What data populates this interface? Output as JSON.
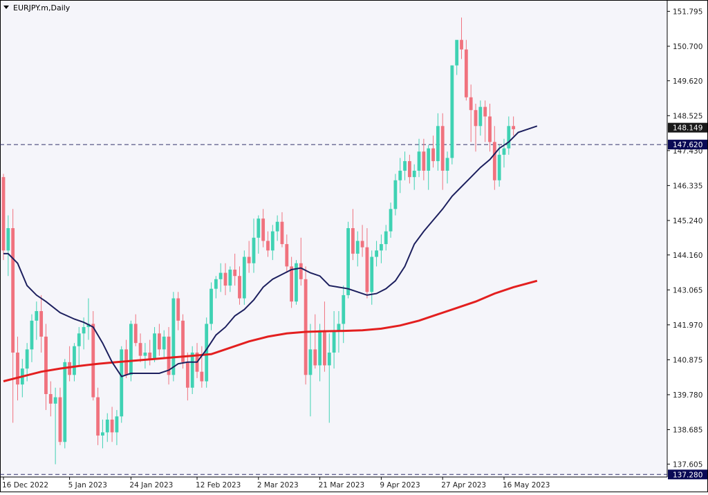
{
  "window": {
    "symbol_title": "EURJPY.m,Daily",
    "menu_arrow_icon": "triangle-down-icon"
  },
  "colors": {
    "background": "#f5f5fa",
    "bull": "#3fd2b3",
    "bear": "#f0727e",
    "ma_fast": "#1c1f5e",
    "ma_slow": "#e31f1f",
    "level_line": "#30306a",
    "price_tag_bg": "#1a1a1a",
    "level_tag_bg": "#0a0a55",
    "axis_text": "#222222"
  },
  "chart_data": {
    "type": "candlestick",
    "y_range": [
      137.2,
      152.15
    ],
    "y_ticks": [
      "151.795",
      "150.700",
      "149.620",
      "148.525",
      "147.430",
      "146.335",
      "145.240",
      "144.160",
      "143.065",
      "141.970",
      "140.875",
      "139.780",
      "138.685",
      "137.605"
    ],
    "x_ticks": [
      {
        "index": 0,
        "label": "16 Dec 2022"
      },
      {
        "index": 14,
        "label": "5 Jan 2023"
      },
      {
        "index": 27,
        "label": "24 Jan 2023"
      },
      {
        "index": 41,
        "label": "12 Feb 2023"
      },
      {
        "index": 54,
        "label": "2 Mar 2023"
      },
      {
        "index": 67,
        "label": "21 Mar 2023"
      },
      {
        "index": 80,
        "label": "9 Apr 2023"
      },
      {
        "index": 93,
        "label": "27 Apr 2023"
      },
      {
        "index": 106,
        "label": "16 May 2023"
      }
    ],
    "horizontal_levels": [
      {
        "value": 147.62,
        "label": "147.620"
      },
      {
        "value": 137.28,
        "label": "137.280"
      }
    ],
    "current_price": {
      "value": 148.149,
      "label": "148.149"
    },
    "candles": [
      [
        146.6,
        146.7,
        144.0,
        144.3
      ],
      [
        144.3,
        145.4,
        143.5,
        145.0
      ],
      [
        145.0,
        145.6,
        138.9,
        141.1
      ],
      [
        141.1,
        141.6,
        139.6,
        140.1
      ],
      [
        140.1,
        140.9,
        139.7,
        140.6
      ],
      [
        140.6,
        141.4,
        140.2,
        141.2
      ],
      [
        141.2,
        142.3,
        140.8,
        142.1
      ],
      [
        142.1,
        142.7,
        141.5,
        142.4
      ],
      [
        142.4,
        142.9,
        141.1,
        141.6
      ],
      [
        141.6,
        142.0,
        139.3,
        139.8
      ],
      [
        139.8,
        140.2,
        139.1,
        139.5
      ],
      [
        139.5,
        140.0,
        137.6,
        139.7
      ],
      [
        139.7,
        140.0,
        138.2,
        138.3
      ],
      [
        138.3,
        140.9,
        138.1,
        140.8
      ],
      [
        140.8,
        141.3,
        140.2,
        140.4
      ],
      [
        140.4,
        141.4,
        140.2,
        141.3
      ],
      [
        141.3,
        141.9,
        140.7,
        141.7
      ],
      [
        141.7,
        142.2,
        141.2,
        141.9
      ],
      [
        141.9,
        142.8,
        141.5,
        142.0
      ],
      [
        142.0,
        142.4,
        139.6,
        139.7
      ],
      [
        139.7,
        140.0,
        138.2,
        138.5
      ],
      [
        138.5,
        139.0,
        138.1,
        138.6
      ],
      [
        138.6,
        139.2,
        138.3,
        139.0
      ],
      [
        139.0,
        139.4,
        138.3,
        138.6
      ],
      [
        138.6,
        139.3,
        138.2,
        139.1
      ],
      [
        139.1,
        141.3,
        138.9,
        141.2
      ],
      [
        141.2,
        141.5,
        140.3,
        140.4
      ],
      [
        140.4,
        142.1,
        140.2,
        142.0
      ],
      [
        142.0,
        142.3,
        141.3,
        141.4
      ],
      [
        141.4,
        141.7,
        140.8,
        141.0
      ],
      [
        141.0,
        141.4,
        140.6,
        141.1
      ],
      [
        141.1,
        141.5,
        140.7,
        140.9
      ],
      [
        140.9,
        141.9,
        140.8,
        141.7
      ],
      [
        141.7,
        142.0,
        141.0,
        141.2
      ],
      [
        141.2,
        141.8,
        140.9,
        141.6
      ],
      [
        141.6,
        141.9,
        140.1,
        140.4
      ],
      [
        140.4,
        143.0,
        140.2,
        142.8
      ],
      [
        142.8,
        143.0,
        141.8,
        142.1
      ],
      [
        142.1,
        142.3,
        140.6,
        140.8
      ],
      [
        140.8,
        141.1,
        139.6,
        140.0
      ],
      [
        140.0,
        141.3,
        139.8,
        141.1
      ],
      [
        141.1,
        141.4,
        140.3,
        140.5
      ],
      [
        140.5,
        141.3,
        140.0,
        140.2
      ],
      [
        140.2,
        142.2,
        140.0,
        142.0
      ],
      [
        142.0,
        143.3,
        141.8,
        143.1
      ],
      [
        143.1,
        143.5,
        142.8,
        143.4
      ],
      [
        143.4,
        143.9,
        143.0,
        143.6
      ],
      [
        143.6,
        143.9,
        142.9,
        143.2
      ],
      [
        143.2,
        143.8,
        143.0,
        143.7
      ],
      [
        143.7,
        144.2,
        143.2,
        143.5
      ],
      [
        143.5,
        143.8,
        142.6,
        142.8
      ],
      [
        142.8,
        144.3,
        142.6,
        144.1
      ],
      [
        144.1,
        144.6,
        143.6,
        143.9
      ],
      [
        143.9,
        145.3,
        143.6,
        144.7
      ],
      [
        144.7,
        145.4,
        144.2,
        145.3
      ],
      [
        145.3,
        145.6,
        144.4,
        144.6
      ],
      [
        144.6,
        144.9,
        144.1,
        144.3
      ],
      [
        144.3,
        145.1,
        144.0,
        144.9
      ],
      [
        144.9,
        145.4,
        144.6,
        145.2
      ],
      [
        145.2,
        145.5,
        144.4,
        144.5
      ],
      [
        144.5,
        144.8,
        143.6,
        143.8
      ],
      [
        143.8,
        144.1,
        142.5,
        142.7
      ],
      [
        142.7,
        144.0,
        142.6,
        143.9
      ],
      [
        143.9,
        144.7,
        143.2,
        143.4
      ],
      [
        143.4,
        143.8,
        140.1,
        140.4
      ],
      [
        140.4,
        142.0,
        139.1,
        141.2
      ],
      [
        141.2,
        142.3,
        140.6,
        140.7
      ],
      [
        140.7,
        142.0,
        140.2,
        141.8
      ],
      [
        141.8,
        142.7,
        140.5,
        140.7
      ],
      [
        140.7,
        141.7,
        138.9,
        141.1
      ],
      [
        141.1,
        142.4,
        140.6,
        141.8
      ],
      [
        141.8,
        142.4,
        141.1,
        142.0
      ],
      [
        142.0,
        143.2,
        141.4,
        142.9
      ],
      [
        142.9,
        145.2,
        142.8,
        145.0
      ],
      [
        145.0,
        145.6,
        144.0,
        144.2
      ],
      [
        144.2,
        144.9,
        143.8,
        144.6
      ],
      [
        144.6,
        145.1,
        144.1,
        144.4
      ],
      [
        144.4,
        145.0,
        142.8,
        143.0
      ],
      [
        143.0,
        144.3,
        142.6,
        144.1
      ],
      [
        144.1,
        144.6,
        143.8,
        144.3
      ],
      [
        144.3,
        144.8,
        143.9,
        144.5
      ],
      [
        144.5,
        145.1,
        144.3,
        144.9
      ],
      [
        144.9,
        145.8,
        144.7,
        145.6
      ],
      [
        145.6,
        146.7,
        145.4,
        146.5
      ],
      [
        146.5,
        147.2,
        146.1,
        146.8
      ],
      [
        146.8,
        147.4,
        146.5,
        147.1
      ],
      [
        147.1,
        147.3,
        146.4,
        146.6
      ],
      [
        146.6,
        147.0,
        146.2,
        146.8
      ],
      [
        146.8,
        147.8,
        146.6,
        147.4
      ],
      [
        147.4,
        147.8,
        146.5,
        146.8
      ],
      [
        146.8,
        147.6,
        146.2,
        147.5
      ],
      [
        147.5,
        147.9,
        146.9,
        147.1
      ],
      [
        147.1,
        148.6,
        146.8,
        148.2
      ],
      [
        148.2,
        148.6,
        146.2,
        146.8
      ],
      [
        146.8,
        147.4,
        146.4,
        147.2
      ],
      [
        147.2,
        150.1,
        147.0,
        150.1
      ],
      [
        150.1,
        150.8,
        149.8,
        150.9
      ],
      [
        150.9,
        151.6,
        150.3,
        150.6
      ],
      [
        150.6,
        150.9,
        149.0,
        149.1
      ],
      [
        149.1,
        149.5,
        147.7,
        148.7
      ],
      [
        148.7,
        148.9,
        147.4,
        148.2
      ],
      [
        148.2,
        149.0,
        147.9,
        148.8
      ],
      [
        148.8,
        149.0,
        147.7,
        148.5
      ],
      [
        148.5,
        148.9,
        147.4,
        147.7
      ],
      [
        147.7,
        148.2,
        146.2,
        146.5
      ],
      [
        146.5,
        147.6,
        146.3,
        147.3
      ],
      [
        147.3,
        147.8,
        146.9,
        147.5
      ],
      [
        147.5,
        148.5,
        147.3,
        148.2
      ],
      [
        148.2,
        148.5,
        147.9,
        148.1
      ]
    ],
    "ma_fast": [
      [
        0,
        144.2
      ],
      [
        1,
        144.2
      ],
      [
        3,
        143.9
      ],
      [
        5,
        143.2
      ],
      [
        7,
        142.9
      ],
      [
        9,
        142.7
      ],
      [
        12,
        142.35
      ],
      [
        15,
        142.15
      ],
      [
        17,
        142.05
      ],
      [
        19,
        141.9
      ],
      [
        21,
        141.4
      ],
      [
        23,
        140.8
      ],
      [
        25,
        140.35
      ],
      [
        27,
        140.45
      ],
      [
        29,
        140.45
      ],
      [
        31,
        140.45
      ],
      [
        33,
        140.45
      ],
      [
        35,
        140.55
      ],
      [
        37,
        140.75
      ],
      [
        39,
        140.8
      ],
      [
        41,
        140.8
      ],
      [
        43,
        141.2
      ],
      [
        45,
        141.65
      ],
      [
        47,
        141.9
      ],
      [
        49,
        142.25
      ],
      [
        51,
        142.45
      ],
      [
        53,
        142.75
      ],
      [
        55,
        143.15
      ],
      [
        57,
        143.4
      ],
      [
        59,
        143.55
      ],
      [
        61,
        143.7
      ],
      [
        63,
        143.75
      ],
      [
        65,
        143.6
      ],
      [
        67,
        143.5
      ],
      [
        69,
        143.2
      ],
      [
        71,
        143.15
      ],
      [
        73,
        143.1
      ],
      [
        75,
        143.0
      ],
      [
        77,
        142.9
      ],
      [
        79,
        142.95
      ],
      [
        81,
        143.1
      ],
      [
        83,
        143.35
      ],
      [
        85,
        143.8
      ],
      [
        87,
        144.5
      ],
      [
        89,
        144.9
      ],
      [
        91,
        145.25
      ],
      [
        93,
        145.6
      ],
      [
        95,
        146.0
      ],
      [
        97,
        146.3
      ],
      [
        99,
        146.6
      ],
      [
        101,
        146.9
      ],
      [
        103,
        147.15
      ],
      [
        105,
        147.5
      ],
      [
        107,
        147.7
      ],
      [
        109,
        148.0
      ],
      [
        111,
        148.1
      ],
      [
        113,
        148.2
      ]
    ],
    "ma_slow": [
      [
        0,
        140.2
      ],
      [
        4,
        140.35
      ],
      [
        8,
        140.5
      ],
      [
        12,
        140.6
      ],
      [
        16,
        140.68
      ],
      [
        20,
        140.75
      ],
      [
        24,
        140.8
      ],
      [
        28,
        140.85
      ],
      [
        32,
        140.9
      ],
      [
        36,
        140.95
      ],
      [
        40,
        141.0
      ],
      [
        44,
        141.05
      ],
      [
        48,
        141.25
      ],
      [
        52,
        141.45
      ],
      [
        56,
        141.6
      ],
      [
        60,
        141.7
      ],
      [
        64,
        141.75
      ],
      [
        68,
        141.77
      ],
      [
        72,
        141.78
      ],
      [
        76,
        141.8
      ],
      [
        80,
        141.85
      ],
      [
        84,
        141.95
      ],
      [
        88,
        142.1
      ],
      [
        92,
        142.3
      ],
      [
        96,
        142.5
      ],
      [
        100,
        142.7
      ],
      [
        104,
        142.95
      ],
      [
        108,
        143.15
      ],
      [
        113,
        143.35
      ]
    ]
  }
}
